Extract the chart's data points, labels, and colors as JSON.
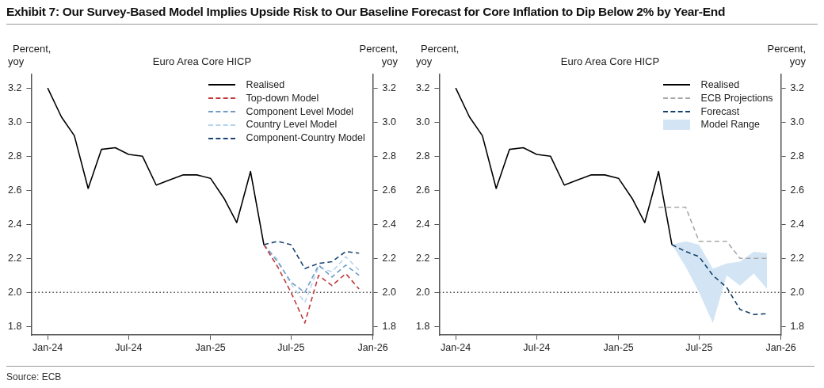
{
  "chart_data": [
    {
      "type": "line",
      "title": "Euro Area Core HICP",
      "ylabel": "Percent,\nyoy",
      "y2label": "Percent,\nyoy",
      "annotations": [
        "Exhibit 7: Our Survey-Based Model Implies Upside Risk to Our Baseline Forecast for Core Inflation to Dip Below 2% by Year-End",
        "Source: ECB"
      ],
      "xlim": [
        "2023-11-25",
        "2026-01-01"
      ],
      "xticks": [
        {
          "value": "2024-01",
          "label": "Jan-24"
        },
        {
          "value": "2024-07",
          "label": "Jul-24"
        },
        {
          "value": "2025-01",
          "label": "Jan-25"
        },
        {
          "value": "2025-07",
          "label": "Jul-25"
        },
        {
          "value": "2026-01",
          "label": "Jan-26"
        }
      ],
      "ylim": [
        1.75,
        3.28
      ],
      "yticks": [
        {
          "value": 1.8,
          "label": "1.8"
        },
        {
          "value": 2.0,
          "label": "2.0"
        },
        {
          "value": 2.2,
          "label": "2.2"
        },
        {
          "value": 2.4,
          "label": "2.4"
        },
        {
          "value": 2.6,
          "label": "2.6"
        },
        {
          "value": 2.8,
          "label": "2.8"
        },
        {
          "value": 3.0,
          "label": "3.0"
        },
        {
          "value": 3.2,
          "label": "3.2"
        }
      ],
      "y2lim": [
        1.75,
        3.28
      ],
      "y2ticks": [
        {
          "value": 1.8,
          "label": "1.8"
        },
        {
          "value": 2.0,
          "label": "2.0"
        },
        {
          "value": 2.2,
          "label": "2.2"
        },
        {
          "value": 2.4,
          "label": "2.4"
        },
        {
          "value": 2.6,
          "label": "2.6"
        },
        {
          "value": 2.8,
          "label": "2.8"
        },
        {
          "value": 3.0,
          "label": "3.0"
        },
        {
          "value": 3.2,
          "label": "3.2"
        }
      ],
      "grid": false,
      "legend": "top right",
      "marker": "none",
      "ref_lines": [
        {
          "axis": "y",
          "value": 2.0,
          "color": "#444444",
          "line_style": "dotted"
        }
      ],
      "series": [
        {
          "name": "Realised",
          "color": "#000000",
          "line_style": "solid",
          "x": [
            "2024-01",
            "2024-02",
            "2024-03",
            "2024-04",
            "2024-05",
            "2024-06",
            "2024-07",
            "2024-08",
            "2024-09",
            "2024-10",
            "2024-11",
            "2024-12",
            "2025-01",
            "2025-02",
            "2025-03",
            "2025-04",
            "2025-05"
          ],
          "values": [
            3.2,
            3.03,
            2.92,
            2.61,
            2.84,
            2.85,
            2.81,
            2.8,
            2.63,
            2.66,
            2.69,
            2.69,
            2.67,
            2.55,
            2.41,
            2.71,
            2.28
          ]
        },
        {
          "name": "Top-down Model",
          "color": "#c0393b",
          "line_style": "dashed",
          "x": [
            "2025-05",
            "2025-06",
            "2025-07",
            "2025-08",
            "2025-09",
            "2025-10",
            "2025-11",
            "2025-12"
          ],
          "values": [
            2.28,
            2.15,
            2.0,
            1.82,
            2.1,
            2.04,
            2.11,
            2.02
          ]
        },
        {
          "name": "Component Level Model",
          "color": "#6f9dc6",
          "line_style": "dashed",
          "x": [
            "2025-05",
            "2025-06",
            "2025-07",
            "2025-08",
            "2025-09",
            "2025-10",
            "2025-11",
            "2025-12"
          ],
          "values": [
            2.28,
            2.18,
            2.06,
            2.0,
            2.16,
            2.09,
            2.16,
            2.1
          ]
        },
        {
          "name": "Country Level Model",
          "color": "#b6d4ee",
          "line_style": "dashed",
          "x": [
            "2025-05",
            "2025-06",
            "2025-07",
            "2025-08",
            "2025-09",
            "2025-10",
            "2025-11",
            "2025-12"
          ],
          "values": [
            2.28,
            2.19,
            2.05,
            1.94,
            2.15,
            2.12,
            2.21,
            2.13
          ]
        },
        {
          "name": "Component-Country Model",
          "color": "#1b4470",
          "line_style": "dashed",
          "x": [
            "2025-05",
            "2025-06",
            "2025-07",
            "2025-08",
            "2025-09",
            "2025-10",
            "2025-11",
            "2025-12"
          ],
          "values": [
            2.28,
            2.3,
            2.28,
            2.14,
            2.17,
            2.18,
            2.24,
            2.23
          ]
        }
      ]
    },
    {
      "type": "line",
      "title": "Euro Area Core HICP",
      "ylabel": "Percent,\nyoy",
      "y2label": "Percent,\nyoy",
      "xlim": [
        "2023-11-25",
        "2026-01-01"
      ],
      "xticks": [
        {
          "value": "2024-01",
          "label": "Jan-24"
        },
        {
          "value": "2024-07",
          "label": "Jul-24"
        },
        {
          "value": "2025-01",
          "label": "Jan-25"
        },
        {
          "value": "2025-07",
          "label": "Jul-25"
        },
        {
          "value": "2026-01",
          "label": "Jan-26"
        }
      ],
      "ylim": [
        1.75,
        3.28
      ],
      "yticks": [
        {
          "value": 1.8,
          "label": "1.8"
        },
        {
          "value": 2.0,
          "label": "2.0"
        },
        {
          "value": 2.2,
          "label": "2.2"
        },
        {
          "value": 2.4,
          "label": "2.4"
        },
        {
          "value": 2.6,
          "label": "2.6"
        },
        {
          "value": 2.8,
          "label": "2.8"
        },
        {
          "value": 3.0,
          "label": "3.0"
        },
        {
          "value": 3.2,
          "label": "3.2"
        }
      ],
      "y2lim": [
        1.75,
        3.28
      ],
      "y2ticks": [
        {
          "value": 1.8,
          "label": "1.8"
        },
        {
          "value": 2.0,
          "label": "2.0"
        },
        {
          "value": 2.2,
          "label": "2.2"
        },
        {
          "value": 2.4,
          "label": "2.4"
        },
        {
          "value": 2.6,
          "label": "2.6"
        },
        {
          "value": 2.8,
          "label": "2.8"
        },
        {
          "value": 3.0,
          "label": "3.0"
        },
        {
          "value": 3.2,
          "label": "3.2"
        }
      ],
      "grid": false,
      "legend": "top right",
      "marker": "none",
      "ref_lines": [
        {
          "axis": "y",
          "value": 2.0,
          "color": "#444444",
          "line_style": "dotted"
        }
      ],
      "series": [
        {
          "name": "Realised",
          "color": "#000000",
          "line_style": "solid",
          "x": [
            "2024-01",
            "2024-02",
            "2024-03",
            "2024-04",
            "2024-05",
            "2024-06",
            "2024-07",
            "2024-08",
            "2024-09",
            "2024-10",
            "2024-11",
            "2024-12",
            "2025-01",
            "2025-02",
            "2025-03",
            "2025-04",
            "2025-05"
          ],
          "values": [
            3.2,
            3.03,
            2.92,
            2.61,
            2.84,
            2.85,
            2.81,
            2.8,
            2.63,
            2.66,
            2.69,
            2.69,
            2.67,
            2.55,
            2.41,
            2.71,
            2.28
          ]
        },
        {
          "name": "ECB Projections",
          "color": "#a8a8a8",
          "line_style": "dashed",
          "x": [
            "2025-04",
            "2025-05",
            "2025-06",
            "2025-07",
            "2025-08",
            "2025-09",
            "2025-10",
            "2025-11",
            "2025-12"
          ],
          "values": [
            2.5,
            2.5,
            2.5,
            2.3,
            2.3,
            2.3,
            2.2,
            2.2,
            2.2
          ]
        },
        {
          "name": "Forecast",
          "color": "#16416b",
          "line_style": "dashed",
          "x": [
            "2025-05",
            "2025-06",
            "2025-07",
            "2025-08",
            "2025-09",
            "2025-10",
            "2025-11",
            "2025-12"
          ],
          "values": [
            2.28,
            2.24,
            2.21,
            2.1,
            2.03,
            1.9,
            1.87,
            1.875
          ]
        },
        {
          "name": "Model Range",
          "color": "#d3e5f5",
          "x": [
            "2025-05",
            "2025-06",
            "2025-07",
            "2025-08",
            "2025-09",
            "2025-10",
            "2025-11",
            "2025-12"
          ],
          "values": [
            null,
            null,
            null,
            null,
            null,
            null,
            null,
            null
          ],
          "lower": [
            2.28,
            2.15,
            2.0,
            1.82,
            2.1,
            2.04,
            2.11,
            2.02
          ],
          "upper": [
            2.28,
            2.3,
            2.28,
            2.14,
            2.17,
            2.18,
            2.24,
            2.23
          ]
        }
      ]
    }
  ]
}
